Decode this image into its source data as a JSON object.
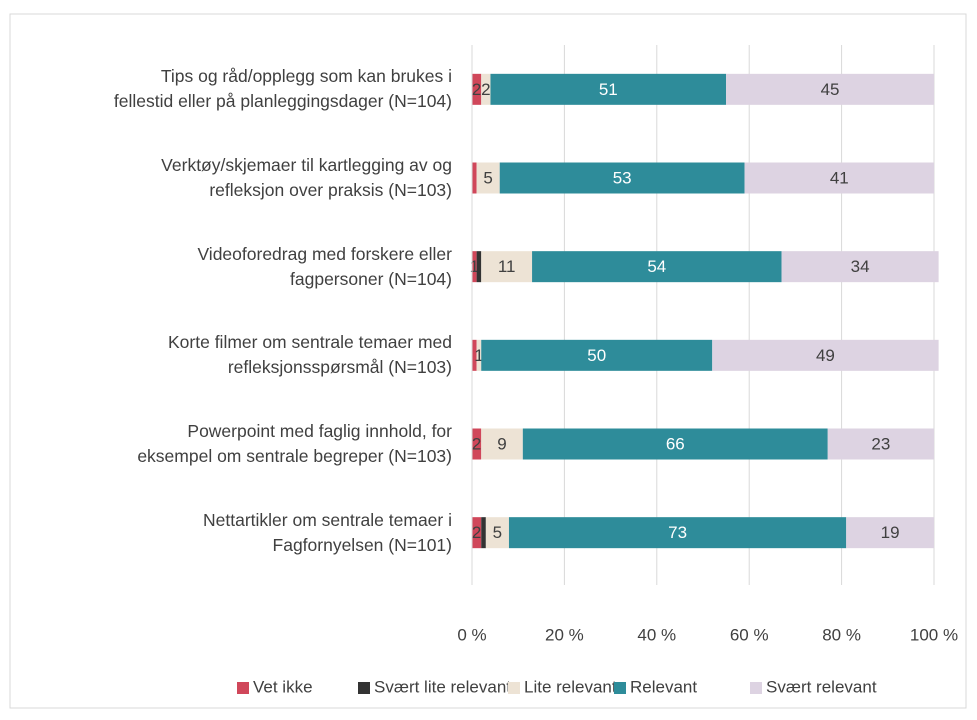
{
  "chart_data": {
    "type": "stacked-bar-horizontal",
    "categories": [
      "Tips og råd/opplegg som kan brukes i\nfellestid eller på planleggingsdager (N=104)",
      "Verktøy/skjemaer til kartlegging av og\nrefleksjon over praksis (N=103)",
      "Videoforedrag med forskere eller\nfagpersoner (N=104)",
      "Korte filmer om sentrale temaer med\nrefleksjonsspørsmål (N=103)",
      "Powerpoint med faglig innhold, for\neksempel om sentrale begreper (N=103)",
      "Nettartikler om sentrale temaer i\nFagfornyelsen (N=101)"
    ],
    "series": [
      {
        "name": "Vet ikke",
        "color": "#d0475a",
        "values": [
          2,
          1,
          1,
          1,
          2,
          2
        ],
        "value_labels": [
          "2",
          null,
          "1",
          null,
          "2",
          "2"
        ]
      },
      {
        "name": "Svært lite relevant",
        "color": "#333333",
        "values": [
          0,
          0,
          1,
          0,
          0,
          1
        ],
        "value_labels": [
          null,
          null,
          null,
          null,
          null,
          null
        ]
      },
      {
        "name": "Lite relevant",
        "color": "#ede3d5",
        "values": [
          2,
          5,
          11,
          1,
          9,
          5
        ]
      },
      {
        "name": "Relevant",
        "color": "#2e8c9a",
        "values": [
          51,
          53,
          54,
          50,
          66,
          73
        ]
      },
      {
        "name": "Svært relevant",
        "color": "#ddd3e2",
        "values": [
          45,
          41,
          34,
          49,
          23,
          19
        ]
      }
    ],
    "xlim": [
      0,
      100
    ],
    "xticks": [
      {
        "value": 0,
        "label": "0 %"
      },
      {
        "value": 20,
        "label": "20 %"
      },
      {
        "value": 40,
        "label": "40 %"
      },
      {
        "value": 60,
        "label": "60 %"
      },
      {
        "value": 80,
        "label": "80 %"
      },
      {
        "value": 100,
        "label": "100 %"
      }
    ],
    "grid": true,
    "legend": "bottom"
  }
}
